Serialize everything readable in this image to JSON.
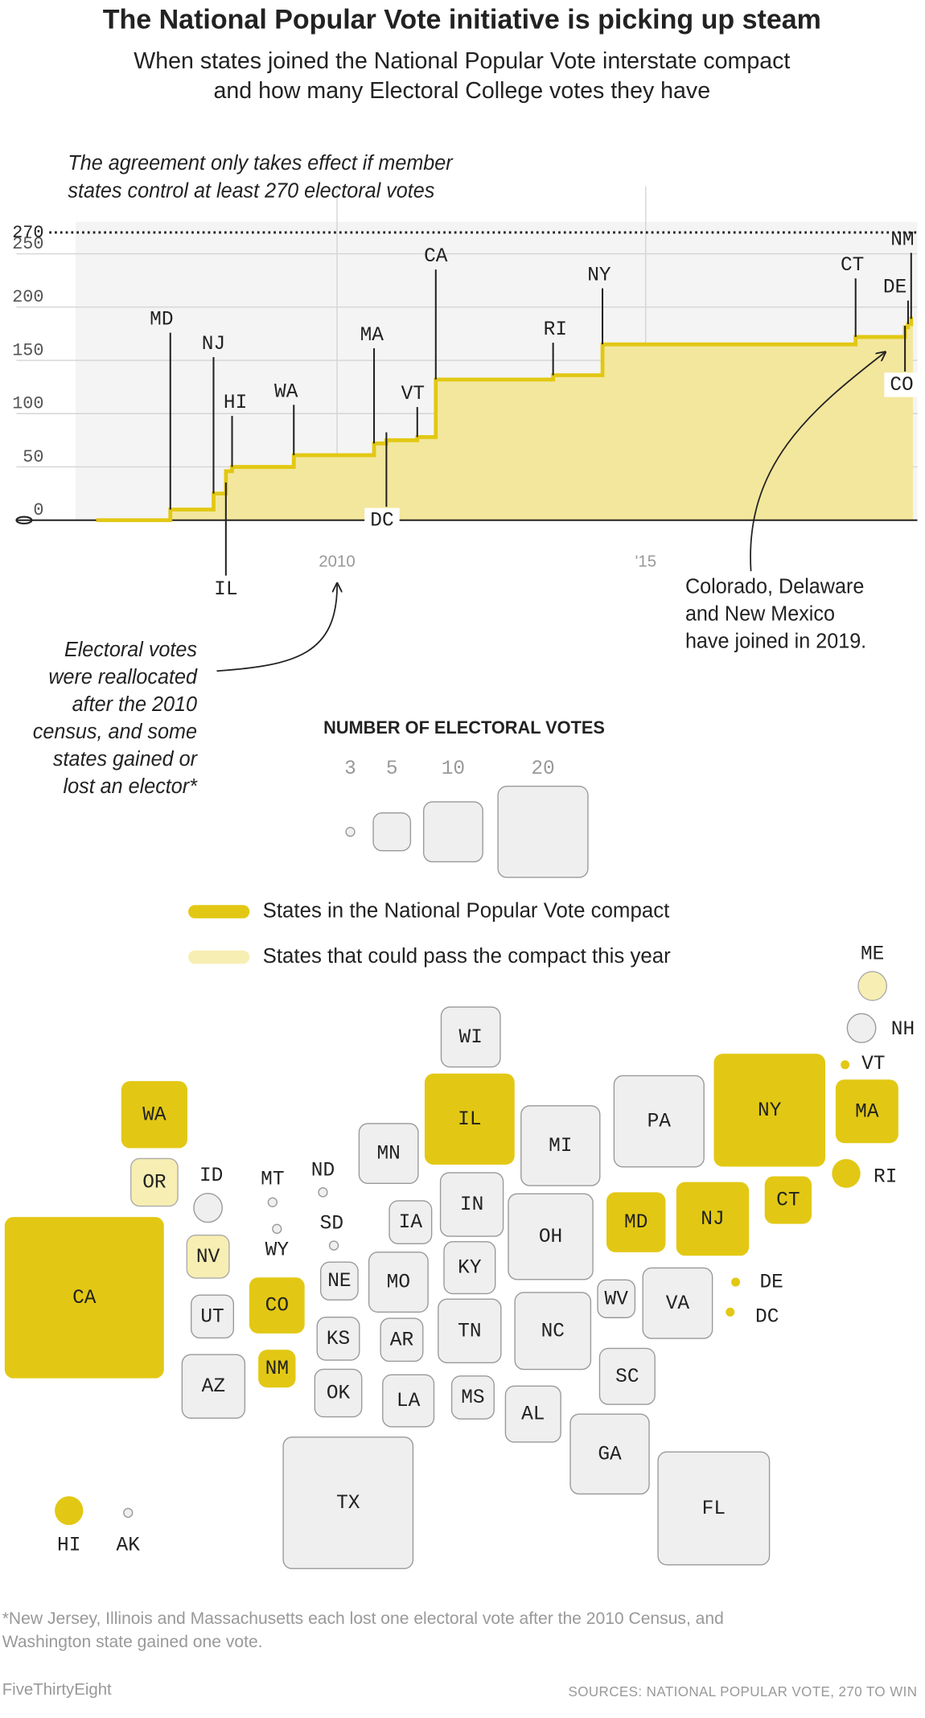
{
  "chart_data": {
    "type": "step",
    "title": "The National Popular Vote initiative is picking up steam",
    "subtitle": [
      "When states joined the National Popular Vote interstate compact",
      "and how many Electoral College votes they have"
    ],
    "x": [
      2006.1,
      2007.3,
      2008.0,
      2008.2,
      2008.3,
      2009.3,
      2010.6,
      2010.8,
      2011.3,
      2011.6,
      2013.5,
      2014.3,
      2018.4,
      2019.2,
      2019.25,
      2019.3
    ],
    "values": [
      0,
      10,
      25,
      46,
      50,
      61,
      72,
      75,
      78,
      132,
      136,
      165,
      172,
      181,
      184,
      189
    ],
    "labels": [
      null,
      "MD",
      "NJ",
      "IL",
      "HI",
      "WA",
      "MA",
      "DC",
      "VT",
      "CA",
      "RI",
      "NY",
      "CT",
      "CO",
      "DE",
      "NM"
    ],
    "color": "#e2c814",
    "area_color": "#f3e79d",
    "xlim": [
      2005.8,
      2019.4
    ],
    "xticks": [
      2010,
      {
        "value": 2015,
        "label": "'15"
      }
    ],
    "ylim": [
      0,
      280
    ],
    "yticks": [
      0,
      50,
      100,
      150,
      200,
      250
    ],
    "threshold": 270,
    "grid": true,
    "annotations": [
      {
        "text": [
          "The agreement only takes effect if member",
          "states control at least 270 electoral votes"
        ]
      },
      {
        "text": [
          "Electoral votes",
          "were reallocated",
          "after the 2010",
          "census, and some",
          "states gained or",
          "lost an elector*"
        ]
      },
      {
        "text": [
          "Colorado, Delaware",
          "and New Mexico",
          "have joined in 2019."
        ]
      }
    ]
  },
  "legend": {
    "title": "NUMBER OF ELECTORAL VOTES",
    "sizes": [
      3,
      5,
      10,
      20
    ],
    "items": [
      {
        "label": "States in the National Popular Vote compact",
        "status": "compact"
      },
      {
        "label": "States that could pass the compact this year",
        "status": "could_pass"
      }
    ]
  },
  "colors": {
    "compact": "#e2c814",
    "could_pass": "#f7eeb3",
    "other": "#efefef"
  },
  "map": {
    "states": [
      {
        "name": "WA",
        "votes": 12,
        "status": "compact"
      },
      {
        "name": "OR",
        "votes": 7,
        "status": "could_pass"
      },
      {
        "name": "CA",
        "votes": 55,
        "status": "compact"
      },
      {
        "name": "ID",
        "votes": 4,
        "status": "other"
      },
      {
        "name": "NV",
        "votes": 6,
        "status": "could_pass"
      },
      {
        "name": "UT",
        "votes": 6,
        "status": "other"
      },
      {
        "name": "AZ",
        "votes": 11,
        "status": "other"
      },
      {
        "name": "MT",
        "votes": 3,
        "status": "other"
      },
      {
        "name": "WY",
        "votes": 3,
        "status": "other"
      },
      {
        "name": "CO",
        "votes": 9,
        "status": "compact"
      },
      {
        "name": "NM",
        "votes": 5,
        "status": "compact"
      },
      {
        "name": "ND",
        "votes": 3,
        "status": "other"
      },
      {
        "name": "SD",
        "votes": 3,
        "status": "other"
      },
      {
        "name": "NE",
        "votes": 5,
        "status": "other"
      },
      {
        "name": "KS",
        "votes": 6,
        "status": "other"
      },
      {
        "name": "OK",
        "votes": 7,
        "status": "other"
      },
      {
        "name": "TX",
        "votes": 38,
        "status": "other"
      },
      {
        "name": "MN",
        "votes": 10,
        "status": "other"
      },
      {
        "name": "IA",
        "votes": 6,
        "status": "other"
      },
      {
        "name": "MO",
        "votes": 10,
        "status": "other"
      },
      {
        "name": "AR",
        "votes": 6,
        "status": "other"
      },
      {
        "name": "LA",
        "votes": 8,
        "status": "other"
      },
      {
        "name": "WI",
        "votes": 10,
        "status": "other"
      },
      {
        "name": "IL",
        "votes": 20,
        "status": "compact"
      },
      {
        "name": "IN",
        "votes": 11,
        "status": "other"
      },
      {
        "name": "KY",
        "votes": 8,
        "status": "other"
      },
      {
        "name": "TN",
        "votes": 11,
        "status": "other"
      },
      {
        "name": "MS",
        "votes": 6,
        "status": "other"
      },
      {
        "name": "AL",
        "votes": 9,
        "status": "other"
      },
      {
        "name": "MI",
        "votes": 16,
        "status": "other"
      },
      {
        "name": "OH",
        "votes": 18,
        "status": "other"
      },
      {
        "name": "NC",
        "votes": 15,
        "status": "other"
      },
      {
        "name": "SC",
        "votes": 9,
        "status": "other"
      },
      {
        "name": "GA",
        "votes": 16,
        "status": "other"
      },
      {
        "name": "FL",
        "votes": 29,
        "status": "other"
      },
      {
        "name": "PA",
        "votes": 20,
        "status": "other"
      },
      {
        "name": "WV",
        "votes": 5,
        "status": "other"
      },
      {
        "name": "VA",
        "votes": 13,
        "status": "other"
      },
      {
        "name": "MD",
        "votes": 10,
        "status": "compact"
      },
      {
        "name": "NJ",
        "votes": 14,
        "status": "compact"
      },
      {
        "name": "DE",
        "votes": 3,
        "status": "compact"
      },
      {
        "name": "DC",
        "votes": 3,
        "status": "compact"
      },
      {
        "name": "NY",
        "votes": 29,
        "status": "compact"
      },
      {
        "name": "CT",
        "votes": 7,
        "status": "compact"
      },
      {
        "name": "MA",
        "votes": 11,
        "status": "compact"
      },
      {
        "name": "RI",
        "votes": 4,
        "status": "compact"
      },
      {
        "name": "VT",
        "votes": 3,
        "status": "compact"
      },
      {
        "name": "NH",
        "votes": 4,
        "status": "other"
      },
      {
        "name": "ME",
        "votes": 4,
        "status": "could_pass"
      },
      {
        "name": "HI",
        "votes": 4,
        "status": "compact"
      },
      {
        "name": "AK",
        "votes": 3,
        "status": "other"
      }
    ]
  },
  "footnote": [
    "*New Jersey, Illinois and Massachusetts each lost one electoral vote after the 2010 Census, and",
    "Washington state gained one vote."
  ],
  "source": "SOURCES: NATIONAL POPULAR VOTE, 270 TO WIN",
  "brand": "FiveThirtyEight"
}
